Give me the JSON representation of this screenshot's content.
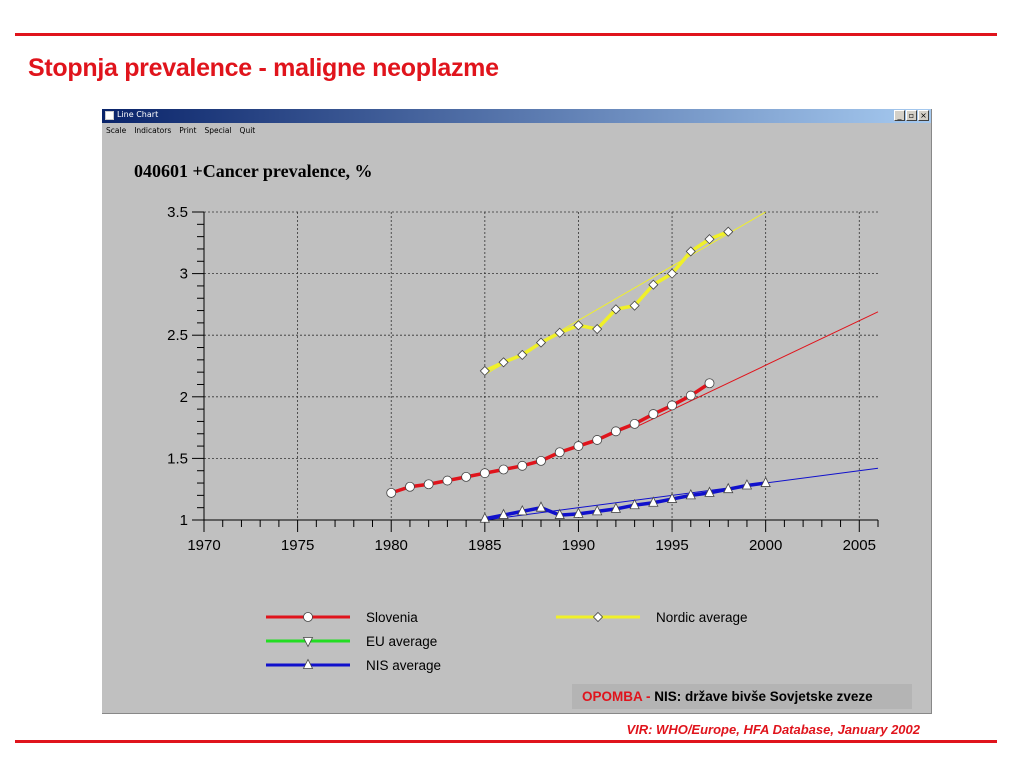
{
  "slide": {
    "title": "Stopnja prevalence - maligne neoplazme",
    "source": "VIR: WHO/Europe, HFA Database, January 2002"
  },
  "window": {
    "title": "Line Chart",
    "menu": [
      "Scale",
      "Indicators",
      "Print",
      "Special",
      "Quit"
    ]
  },
  "note": {
    "label": "OPOMBA - ",
    "text": "NIS: države bivše Sovjetske zveze"
  },
  "colors": {
    "accent": "#e0141c",
    "slovenia": "#e0141c",
    "eu": "#22dd22",
    "nis": "#1010cc",
    "nordic": "#f0f028",
    "chart_bg": "#c0c0c0"
  },
  "chart_data": {
    "type": "line",
    "title": "040601 +Cancer prevalence, %",
    "xlim": [
      1970,
      2006
    ],
    "ylim": [
      1,
      3.5
    ],
    "xticks": [
      1970,
      1975,
      1980,
      1985,
      1990,
      1995,
      2000,
      2005
    ],
    "yticks": [
      1,
      1.5,
      2,
      2.5,
      3,
      3.5
    ],
    "ytick_labels": [
      "1",
      "1.5",
      "2",
      "2.5",
      "3",
      "3.5"
    ],
    "grid": true,
    "legend_position": "bottom",
    "series": [
      {
        "name": "Slovenia",
        "marker": "circle",
        "x": [
          1980,
          1981,
          1982,
          1983,
          1984,
          1985,
          1986,
          1987,
          1988,
          1989,
          1990,
          1991,
          1992,
          1993,
          1994,
          1995,
          1996,
          1997
        ],
        "values": [
          1.22,
          1.27,
          1.29,
          1.32,
          1.35,
          1.38,
          1.41,
          1.44,
          1.48,
          1.55,
          1.6,
          1.65,
          1.72,
          1.78,
          1.86,
          1.93,
          2.01,
          2.11
        ],
        "trend": {
          "x": [
            1993,
            2006
          ],
          "values": [
            1.75,
            2.69
          ]
        }
      },
      {
        "name": "EU average",
        "marker": "triangle-down",
        "x": [],
        "values": []
      },
      {
        "name": "NIS average",
        "marker": "triangle-up",
        "x": [
          1985,
          1986,
          1987,
          1988,
          1989,
          1990,
          1991,
          1992,
          1993,
          1994,
          1995,
          1996,
          1997,
          1998,
          1999,
          2000
        ],
        "values": [
          1.01,
          1.04,
          1.07,
          1.1,
          1.04,
          1.05,
          1.07,
          1.09,
          1.12,
          1.14,
          1.17,
          1.2,
          1.22,
          1.25,
          1.28,
          1.3
        ],
        "trend": {
          "x": [
            1985,
            2006
          ],
          "values": [
            1.0,
            1.42
          ]
        }
      },
      {
        "name": "Nordic average",
        "marker": "diamond",
        "x": [
          1985,
          1986,
          1987,
          1988,
          1989,
          1990,
          1991,
          1992,
          1993,
          1994,
          1995,
          1996,
          1997,
          1998
        ],
        "values": [
          2.21,
          2.28,
          2.34,
          2.44,
          2.52,
          2.58,
          2.55,
          2.71,
          2.74,
          2.91,
          3.0,
          3.18,
          3.28,
          3.34
        ],
        "trend": {
          "x": [
            1985,
            2000
          ],
          "values": [
            2.18,
            3.5
          ]
        }
      }
    ]
  }
}
